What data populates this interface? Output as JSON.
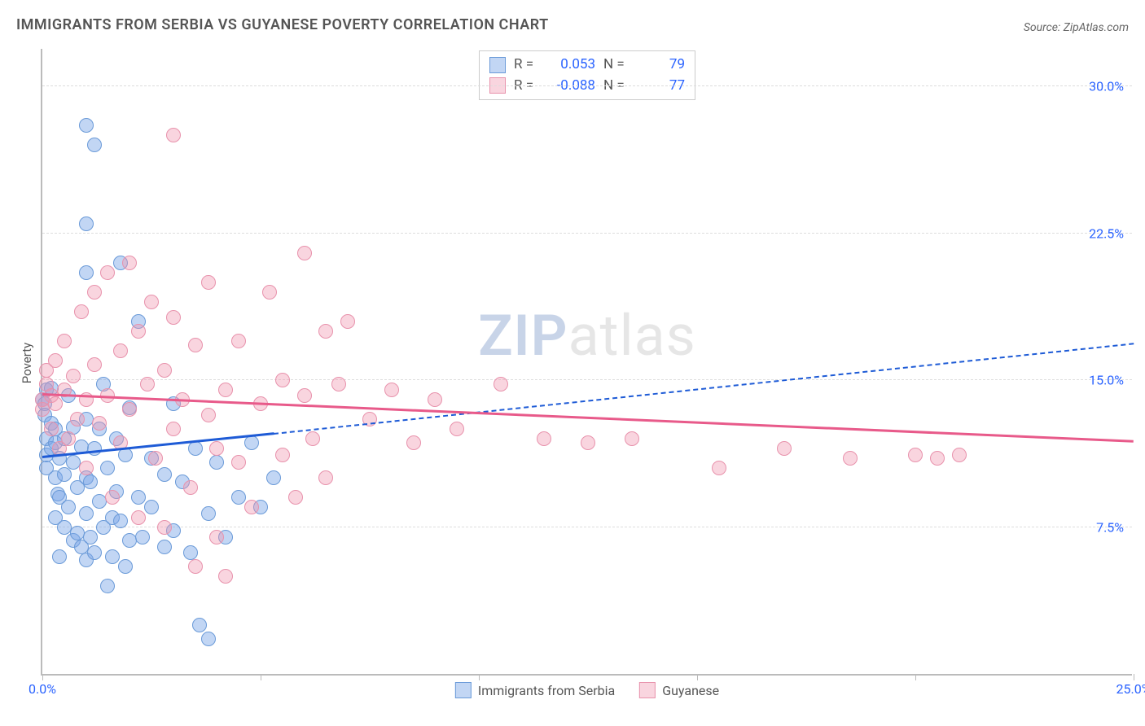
{
  "title": "IMMIGRANTS FROM SERBIA VS GUYANESE POVERTY CORRELATION CHART",
  "source_label": "Source:",
  "source_value": "ZipAtlas.com",
  "y_axis_label": "Poverty",
  "watermark_a": "ZIP",
  "watermark_b": "atlas",
  "chart": {
    "type": "scatter",
    "xlim": [
      0,
      25
    ],
    "ylim": [
      0,
      32
    ],
    "y_ticks": [
      7.5,
      15.0,
      22.5,
      30.0
    ],
    "y_tick_labels": [
      "7.5%",
      "15.0%",
      "22.5%",
      "30.0%"
    ],
    "x_ticks": [
      0,
      5,
      10,
      15,
      20,
      25
    ],
    "x_tick_labels": {
      "first": "0.0%",
      "last": "25.0%"
    },
    "background_color": "#ffffff",
    "grid_color": "#dddddd",
    "axis_color": "#bbbbbb",
    "marker_radius": 9,
    "series": [
      {
        "name": "Immigrants from Serbia",
        "fill": "rgba(120,165,230,0.45)",
        "stroke": "#6a9ad8",
        "trend_color": "#1e5bd6",
        "R": "0.053",
        "N": "79",
        "trend": {
          "x1": 0,
          "y1": 11.0,
          "x2_solid": 5.3,
          "y2_solid": 12.2,
          "x2_dash": 25,
          "y2_dash": 16.8
        },
        "points": [
          [
            0.0,
            14.0
          ],
          [
            0.05,
            13.8
          ],
          [
            0.05,
            13.2
          ],
          [
            0.1,
            14.5
          ],
          [
            0.1,
            12.0
          ],
          [
            0.1,
            11.2
          ],
          [
            0.1,
            10.5
          ],
          [
            0.2,
            14.6
          ],
          [
            0.2,
            12.8
          ],
          [
            0.2,
            11.5
          ],
          [
            0.3,
            8.0
          ],
          [
            0.3,
            10.0
          ],
          [
            0.3,
            11.8
          ],
          [
            0.3,
            12.5
          ],
          [
            0.35,
            9.2
          ],
          [
            0.4,
            6.0
          ],
          [
            0.4,
            9.0
          ],
          [
            0.4,
            11.0
          ],
          [
            0.5,
            7.5
          ],
          [
            0.5,
            10.2
          ],
          [
            0.5,
            12.0
          ],
          [
            0.6,
            14.2
          ],
          [
            0.6,
            8.5
          ],
          [
            0.7,
            6.8
          ],
          [
            0.7,
            10.8
          ],
          [
            0.7,
            12.6
          ],
          [
            0.8,
            7.2
          ],
          [
            0.8,
            9.5
          ],
          [
            0.9,
            11.6
          ],
          [
            0.9,
            6.5
          ],
          [
            1.0,
            28.0
          ],
          [
            1.0,
            20.5
          ],
          [
            1.0,
            23.0
          ],
          [
            1.0,
            13.0
          ],
          [
            1.0,
            10.0
          ],
          [
            1.0,
            8.2
          ],
          [
            1.0,
            5.8
          ],
          [
            1.1,
            7.0
          ],
          [
            1.1,
            9.8
          ],
          [
            1.2,
            27.0
          ],
          [
            1.2,
            11.5
          ],
          [
            1.2,
            6.2
          ],
          [
            1.3,
            8.8
          ],
          [
            1.3,
            12.5
          ],
          [
            1.4,
            14.8
          ],
          [
            1.4,
            7.5
          ],
          [
            1.5,
            4.5
          ],
          [
            1.5,
            10.5
          ],
          [
            1.6,
            6.0
          ],
          [
            1.6,
            8.0
          ],
          [
            1.7,
            12.0
          ],
          [
            1.7,
            9.3
          ],
          [
            1.8,
            21.0
          ],
          [
            1.8,
            7.8
          ],
          [
            1.9,
            5.5
          ],
          [
            1.9,
            11.2
          ],
          [
            2.0,
            6.8
          ],
          [
            2.0,
            13.6
          ],
          [
            2.2,
            9.0
          ],
          [
            2.2,
            18.0
          ],
          [
            2.3,
            7.0
          ],
          [
            2.5,
            8.5
          ],
          [
            2.5,
            11.0
          ],
          [
            2.8,
            6.5
          ],
          [
            2.8,
            10.2
          ],
          [
            3.0,
            13.8
          ],
          [
            3.0,
            7.3
          ],
          [
            3.2,
            9.8
          ],
          [
            3.4,
            6.2
          ],
          [
            3.5,
            11.5
          ],
          [
            3.6,
            2.5
          ],
          [
            3.8,
            8.2
          ],
          [
            3.8,
            1.8
          ],
          [
            4.0,
            10.8
          ],
          [
            4.2,
            7.0
          ],
          [
            4.5,
            9.0
          ],
          [
            4.8,
            11.8
          ],
          [
            5.0,
            8.5
          ],
          [
            5.3,
            10.0
          ]
        ]
      },
      {
        "name": "Guyanese",
        "fill": "rgba(240,150,175,0.40)",
        "stroke": "#e892ac",
        "trend_color": "#e85a8a",
        "R": "-0.088",
        "N": "77",
        "trend": {
          "x1": 0,
          "y1": 14.2,
          "x2_solid": 25,
          "y2_solid": 11.8,
          "x2_dash": 25,
          "y2_dash": 11.8
        },
        "points": [
          [
            0.0,
            14.0
          ],
          [
            0.0,
            13.5
          ],
          [
            0.1,
            14.8
          ],
          [
            0.1,
            15.5
          ],
          [
            0.2,
            14.2
          ],
          [
            0.2,
            12.5
          ],
          [
            0.3,
            16.0
          ],
          [
            0.3,
            13.8
          ],
          [
            0.4,
            11.5
          ],
          [
            0.5,
            17.0
          ],
          [
            0.5,
            14.5
          ],
          [
            0.6,
            12.0
          ],
          [
            0.7,
            15.2
          ],
          [
            0.8,
            13.0
          ],
          [
            0.9,
            18.5
          ],
          [
            1.0,
            14.0
          ],
          [
            1.0,
            10.5
          ],
          [
            1.2,
            19.5
          ],
          [
            1.2,
            15.8
          ],
          [
            1.3,
            12.8
          ],
          [
            1.5,
            20.5
          ],
          [
            1.5,
            14.2
          ],
          [
            1.6,
            9.0
          ],
          [
            1.8,
            16.5
          ],
          [
            1.8,
            11.8
          ],
          [
            2.0,
            21.0
          ],
          [
            2.0,
            13.5
          ],
          [
            2.2,
            17.5
          ],
          [
            2.2,
            8.0
          ],
          [
            2.4,
            14.8
          ],
          [
            2.5,
            19.0
          ],
          [
            2.6,
            11.0
          ],
          [
            2.8,
            15.5
          ],
          [
            2.8,
            7.5
          ],
          [
            3.0,
            27.5
          ],
          [
            3.0,
            18.2
          ],
          [
            3.0,
            12.5
          ],
          [
            3.2,
            14.0
          ],
          [
            3.4,
            9.5
          ],
          [
            3.5,
            16.8
          ],
          [
            3.5,
            5.5
          ],
          [
            3.8,
            13.2
          ],
          [
            3.8,
            20.0
          ],
          [
            4.0,
            11.5
          ],
          [
            4.0,
            7.0
          ],
          [
            4.2,
            14.5
          ],
          [
            4.2,
            5.0
          ],
          [
            4.5,
            17.0
          ],
          [
            4.5,
            10.8
          ],
          [
            4.8,
            8.5
          ],
          [
            5.0,
            13.8
          ],
          [
            5.2,
            19.5
          ],
          [
            5.5,
            11.2
          ],
          [
            5.5,
            15.0
          ],
          [
            5.8,
            9.0
          ],
          [
            6.0,
            14.2
          ],
          [
            6.0,
            21.5
          ],
          [
            6.2,
            12.0
          ],
          [
            6.5,
            17.5
          ],
          [
            6.5,
            10.0
          ],
          [
            6.8,
            14.8
          ],
          [
            7.0,
            18.0
          ],
          [
            7.5,
            13.0
          ],
          [
            8.0,
            14.5
          ],
          [
            8.5,
            11.8
          ],
          [
            9.0,
            14.0
          ],
          [
            9.5,
            12.5
          ],
          [
            10.5,
            14.8
          ],
          [
            11.5,
            12.0
          ],
          [
            12.5,
            11.8
          ],
          [
            13.5,
            12.0
          ],
          [
            15.5,
            10.5
          ],
          [
            17.0,
            11.5
          ],
          [
            18.5,
            11.0
          ],
          [
            20.0,
            11.2
          ],
          [
            20.5,
            11.0
          ],
          [
            21.0,
            11.2
          ]
        ]
      }
    ]
  },
  "legend_top": {
    "R_label": "R =",
    "N_label": "N ="
  }
}
